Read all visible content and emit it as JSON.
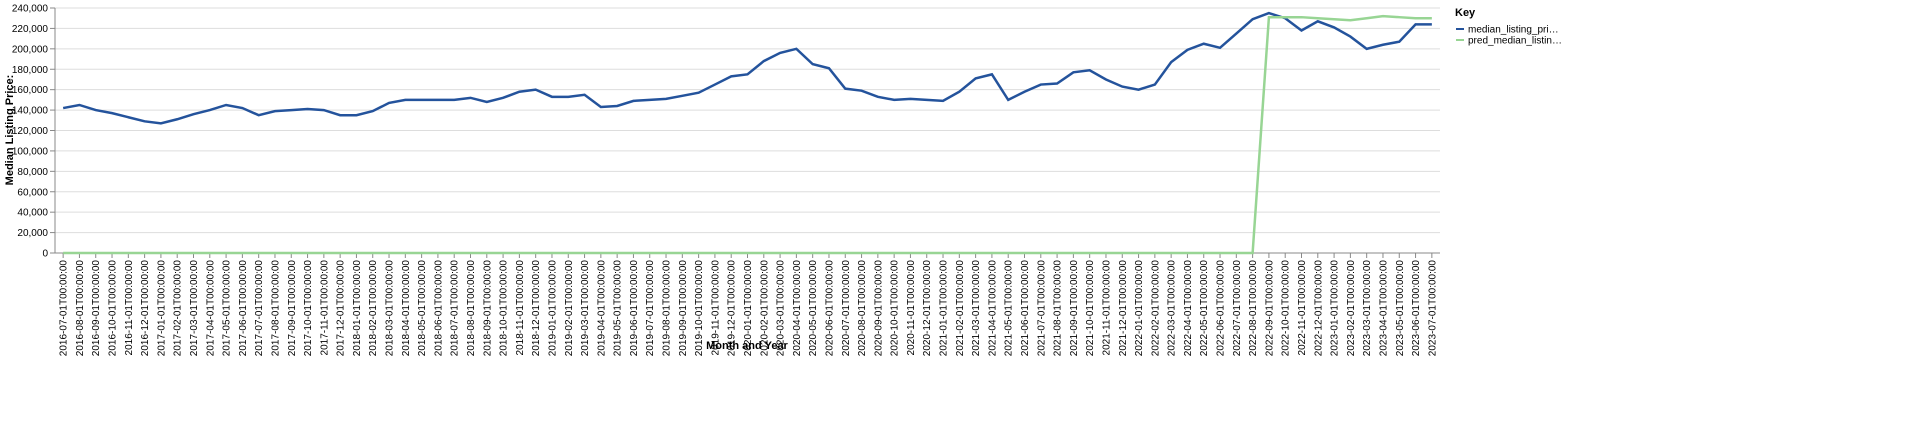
{
  "chart_data": {
    "type": "line",
    "x_label": "Month and Year",
    "y_label": "Median Listing Price:",
    "legend_title": "Key",
    "categories": [
      "2016-07-01T00:00:00",
      "2016-08-01T00:00:00",
      "2016-09-01T00:00:00",
      "2016-10-01T00:00:00",
      "2016-11-01T00:00:00",
      "2016-12-01T00:00:00",
      "2017-01-01T00:00:00",
      "2017-02-01T00:00:00",
      "2017-03-01T00:00:00",
      "2017-04-01T00:00:00",
      "2017-05-01T00:00:00",
      "2017-06-01T00:00:00",
      "2017-07-01T00:00:00",
      "2017-08-01T00:00:00",
      "2017-09-01T00:00:00",
      "2017-10-01T00:00:00",
      "2017-11-01T00:00:00",
      "2017-12-01T00:00:00",
      "2018-01-01T00:00:00",
      "2018-02-01T00:00:00",
      "2018-03-01T00:00:00",
      "2018-04-01T00:00:00",
      "2018-05-01T00:00:00",
      "2018-06-01T00:00:00",
      "2018-07-01T00:00:00",
      "2018-08-01T00:00:00",
      "2018-09-01T00:00:00",
      "2018-10-01T00:00:00",
      "2018-11-01T00:00:00",
      "2018-12-01T00:00:00",
      "2019-01-01T00:00:00",
      "2019-02-01T00:00:00",
      "2019-03-01T00:00:00",
      "2019-04-01T00:00:00",
      "2019-05-01T00:00:00",
      "2019-06-01T00:00:00",
      "2019-07-01T00:00:00",
      "2019-08-01T00:00:00",
      "2019-09-01T00:00:00",
      "2019-10-01T00:00:00",
      "2019-11-01T00:00:00",
      "2019-12-01T00:00:00",
      "2020-01-01T00:00:00",
      "2020-02-01T00:00:00",
      "2020-03-01T00:00:00",
      "2020-04-01T00:00:00",
      "2020-05-01T00:00:00",
      "2020-06-01T00:00:00",
      "2020-07-01T00:00:00",
      "2020-08-01T00:00:00",
      "2020-09-01T00:00:00",
      "2020-10-01T00:00:00",
      "2020-11-01T00:00:00",
      "2020-12-01T00:00:00",
      "2021-01-01T00:00:00",
      "2021-02-01T00:00:00",
      "2021-03-01T00:00:00",
      "2021-04-01T00:00:00",
      "2021-05-01T00:00:00",
      "2021-06-01T00:00:00",
      "2021-07-01T00:00:00",
      "2021-08-01T00:00:00",
      "2021-09-01T00:00:00",
      "2021-10-01T00:00:00",
      "2021-11-01T00:00:00",
      "2021-12-01T00:00:00",
      "2022-01-01T00:00:00",
      "2022-02-01T00:00:00",
      "2022-03-01T00:00:00",
      "2022-04-01T00:00:00",
      "2022-05-01T00:00:00",
      "2022-06-01T00:00:00",
      "2022-07-01T00:00:00",
      "2022-08-01T00:00:00",
      "2022-09-01T00:00:00",
      "2022-10-01T00:00:00",
      "2022-11-01T00:00:00",
      "2022-12-01T00:00:00",
      "2023-01-01T00:00:00",
      "2023-02-01T00:00:00",
      "2023-03-01T00:00:00",
      "2023-04-01T00:00:00",
      "2023-05-01T00:00:00",
      "2023-06-01T00:00:00",
      "2023-07-01T00:00:00"
    ],
    "series": [
      {
        "name": "median_listing_pri…",
        "color": "#24539c",
        "values": [
          142000,
          145000,
          140000,
          137000,
          133000,
          129000,
          127000,
          131000,
          136000,
          140000,
          145000,
          142000,
          135000,
          139000,
          140000,
          141000,
          140000,
          135000,
          135000,
          139000,
          147000,
          150000,
          150000,
          150000,
          150000,
          152000,
          148000,
          152000,
          158000,
          160000,
          153000,
          153000,
          155000,
          143000,
          144000,
          149000,
          150000,
          151000,
          154000,
          157000,
          165000,
          173000,
          175000,
          188000,
          196000,
          200000,
          185000,
          181000,
          161000,
          159000,
          153000,
          150000,
          151000,
          150000,
          149000,
          158000,
          171000,
          175000,
          150000,
          158000,
          165000,
          166000,
          177000,
          179000,
          170000,
          163000,
          160000,
          165000,
          187000,
          199000,
          205000,
          201000,
          215000,
          229000,
          235000,
          230000,
          218000,
          227000,
          221000,
          212000,
          200000,
          204000,
          207000,
          224000,
          224000
        ]
      },
      {
        "name": "pred_median_listin…",
        "color": "#98d594",
        "values": [
          0,
          0,
          0,
          0,
          0,
          0,
          0,
          0,
          0,
          0,
          0,
          0,
          0,
          0,
          0,
          0,
          0,
          0,
          0,
          0,
          0,
          0,
          0,
          0,
          0,
          0,
          0,
          0,
          0,
          0,
          0,
          0,
          0,
          0,
          0,
          0,
          0,
          0,
          0,
          0,
          0,
          0,
          0,
          0,
          0,
          0,
          0,
          0,
          0,
          0,
          0,
          0,
          0,
          0,
          0,
          0,
          0,
          0,
          0,
          0,
          0,
          0,
          0,
          0,
          0,
          0,
          0,
          0,
          0,
          0,
          0,
          0,
          0,
          0,
          231000,
          231000,
          231000,
          230000,
          229000,
          228000,
          230000,
          232000,
          231000,
          230000,
          230000
        ]
      }
    ],
    "ylim": [
      0,
      240000
    ],
    "yticks": [
      0,
      {
        "value": 20000,
        "label": "20,000"
      },
      {
        "value": 40000,
        "label": "40,000"
      },
      {
        "value": 60000,
        "label": "60,000"
      },
      {
        "value": 80000,
        "label": "80,000"
      },
      {
        "value": 100000,
        "label": "100,000"
      },
      {
        "value": 120000,
        "label": "120,000"
      },
      {
        "value": 140000,
        "label": "140,000"
      },
      {
        "value": 160000,
        "label": "160,000"
      },
      {
        "value": 180000,
        "label": "180,000"
      },
      {
        "value": 200000,
        "label": "200,000"
      },
      {
        "value": 220000,
        "label": "220,000"
      },
      {
        "value": 240000,
        "label": "240,000"
      }
    ],
    "grid": true
  }
}
